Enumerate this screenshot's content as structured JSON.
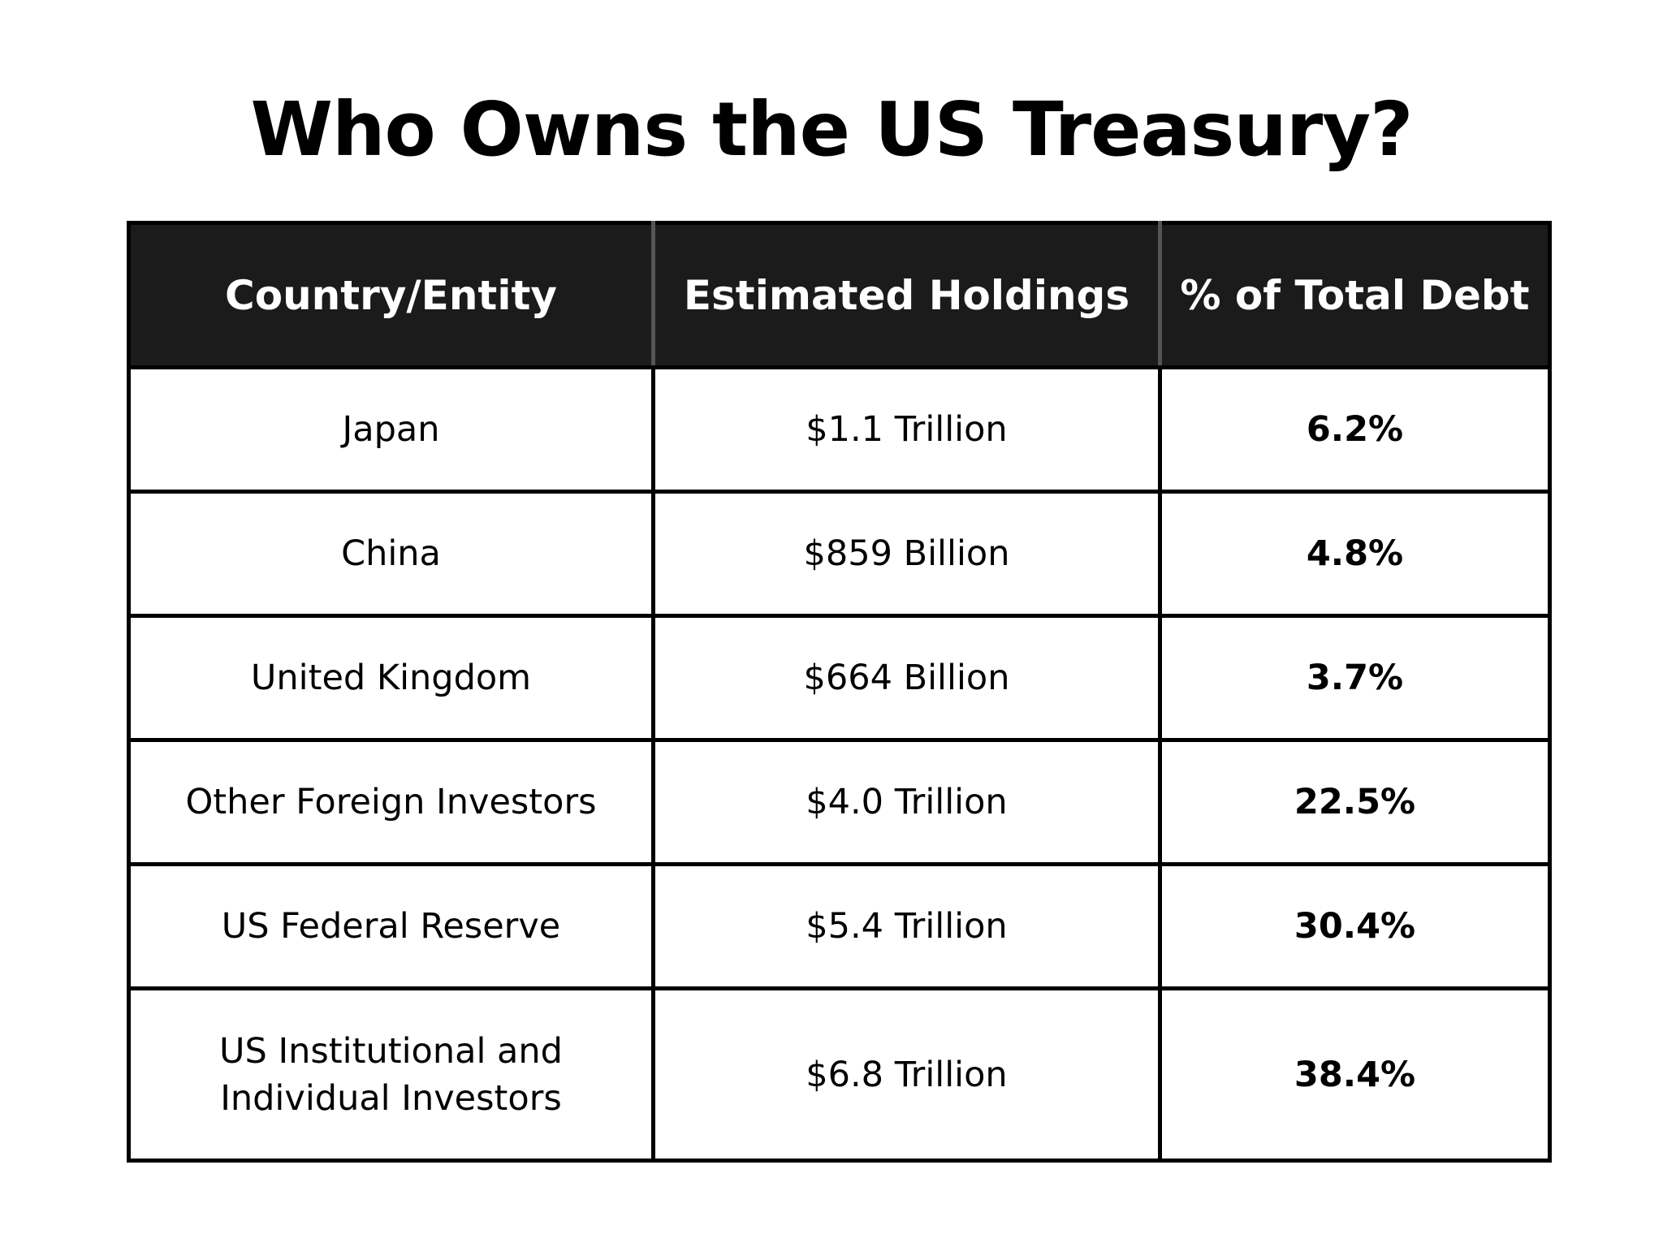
{
  "chart_data": {
    "type": "table",
    "title": "Who Owns the US Treasury?",
    "columns": [
      "Country/Entity",
      "Estimated Holdings",
      "% of Total Debt"
    ],
    "rows": [
      [
        "Japan",
        "$1.1 Trillion",
        "6.2%"
      ],
      [
        "China",
        "$859 Billion",
        "4.8%"
      ],
      [
        "United Kingdom",
        "$664 Billion",
        "3.7%"
      ],
      [
        "Other Foreign Investors",
        "$4.0 Trillion",
        "22.5%"
      ],
      [
        "US Federal Reserve",
        "$5.4 Trillion",
        "30.4%"
      ],
      [
        "US Institutional and Individual Investors",
        "$6.8 Trillion",
        "38.4%"
      ]
    ]
  }
}
